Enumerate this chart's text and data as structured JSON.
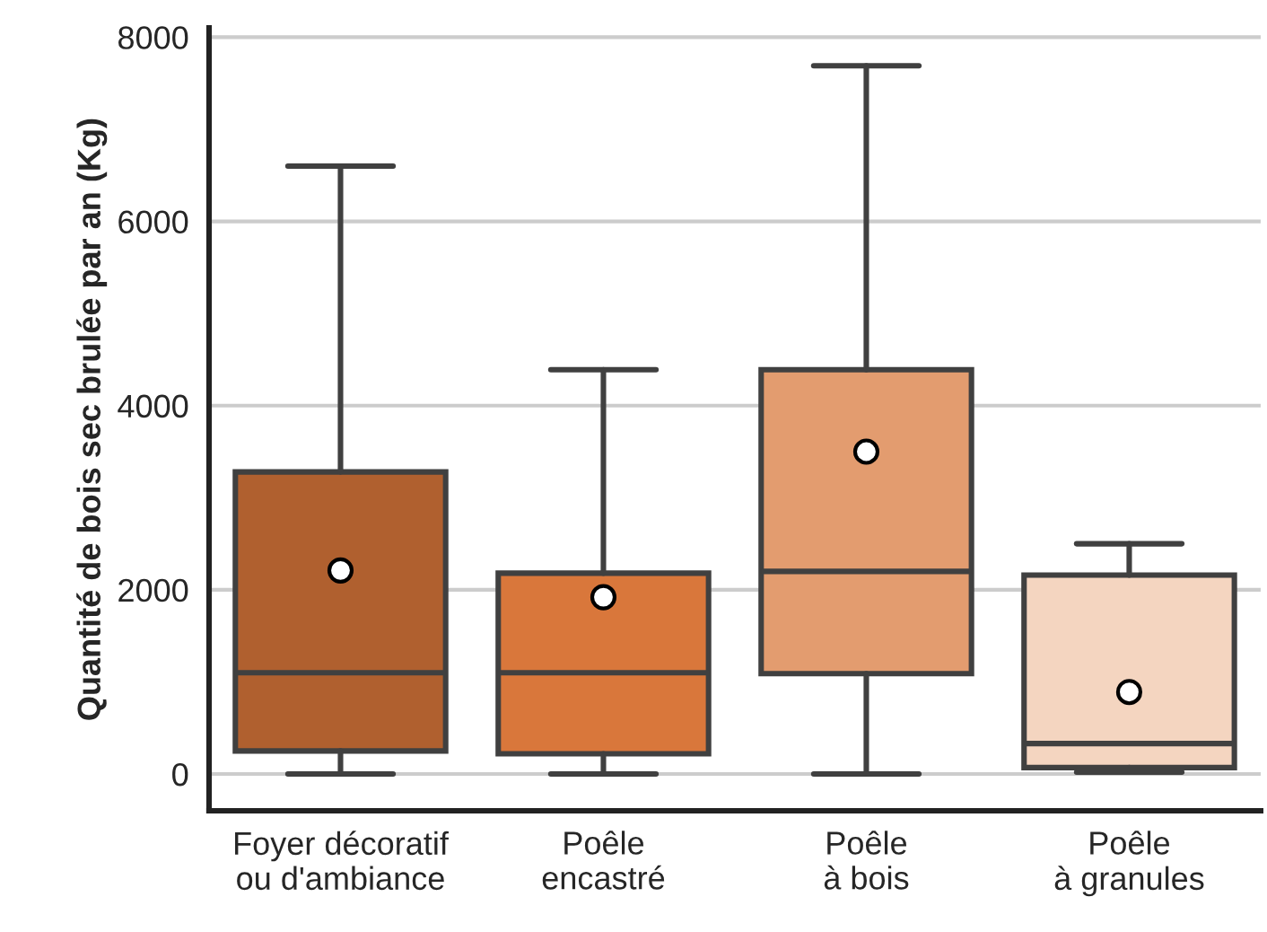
{
  "chart_data": {
    "type": "box",
    "ylabel": "Quantité de bois sec brulée par an (Kg)",
    "categories": [
      "Foyer décoratif\nou d'ambiance",
      "Poêle\nencastré",
      "Poêle\nà bois",
      "Poêle\nà granules"
    ],
    "colors": [
      "#b0602f",
      "#d9773b",
      "#e39c6f",
      "#f4d5c0"
    ],
    "boxes": [
      {
        "low": 0,
        "q1": 250,
        "median": 1100,
        "q3": 3280,
        "high": 6600,
        "mean": 2210
      },
      {
        "low": 0,
        "q1": 220,
        "median": 1100,
        "q3": 2180,
        "high": 4390,
        "mean": 1920
      },
      {
        "low": 0,
        "q1": 1090,
        "median": 2200,
        "q3": 4390,
        "high": 7690,
        "mean": 3500
      },
      {
        "low": 20,
        "q1": 70,
        "median": 330,
        "q3": 2160,
        "high": 2500,
        "mean": 890
      }
    ],
    "ylim": [
      -400,
      8100
    ],
    "yticks": [
      0,
      2000,
      4000,
      6000,
      8000
    ],
    "grid": "y"
  }
}
